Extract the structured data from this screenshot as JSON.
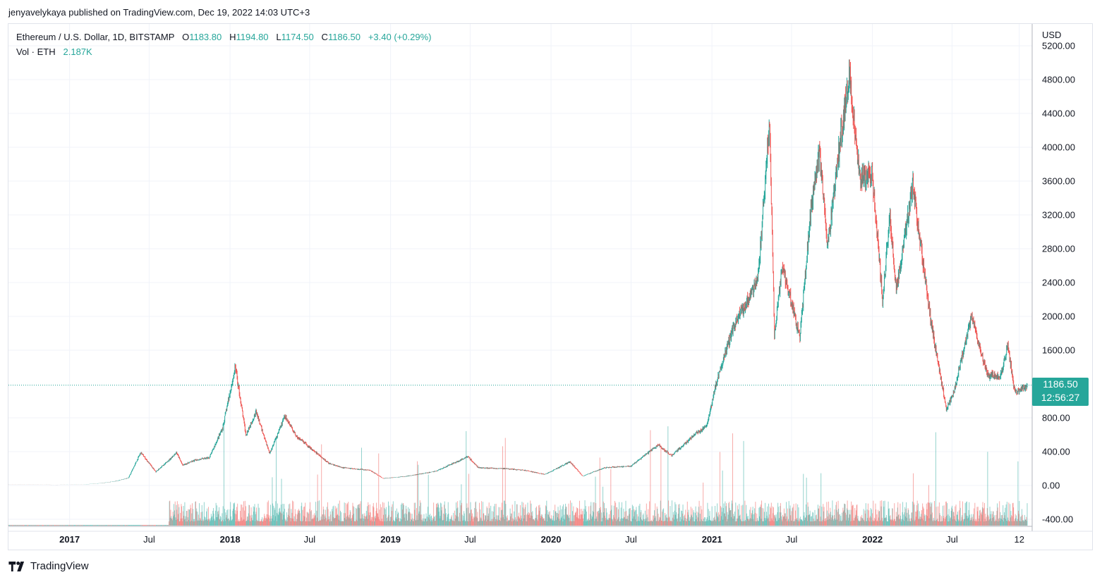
{
  "header": {
    "published": "jenyavelykaya published on TradingView.com, Dec 19, 2022 14:03 UTC+3"
  },
  "legend": {
    "symbol": "Ethereum / U.S. Dollar, 1D, BITSTAMP",
    "o_label": "O",
    "o_value": "1183.80",
    "h_label": "H",
    "h_value": "1194.80",
    "l_label": "L",
    "l_value": "1174.50",
    "c_label": "C",
    "c_value": "1186.50",
    "change": "+3.40 (+0.29%)",
    "vol_label": "Vol · ETH",
    "vol_value": "2.187K"
  },
  "price_axis": {
    "currency": "USD",
    "last_price": "1186.50",
    "countdown": "12:56:27"
  },
  "colors": {
    "up": "#26a69a",
    "down": "#ef5350",
    "grid": "#f0f3fa",
    "axis_text": "#131722"
  },
  "brand": {
    "name": "TradingView",
    "icon": "tradingview-logo-icon"
  },
  "chart_data": {
    "type": "candlestick",
    "interval": "1D",
    "exchange": "BITSTAMP",
    "y_ticks": [
      "5200.00",
      "4800.00",
      "4400.00",
      "4000.00",
      "3600.00",
      "3200.00",
      "2800.00",
      "2400.00",
      "2000.00",
      "1600.00",
      "800.00",
      "400.00",
      "0.00",
      "-400.00"
    ],
    "ylim": [
      -450,
      5300
    ],
    "x_ticks": [
      {
        "label": "2017",
        "date": "2017-01-01",
        "bold": true
      },
      {
        "label": "Jul",
        "date": "2017-07-01",
        "bold": false
      },
      {
        "label": "2018",
        "date": "2018-01-01",
        "bold": true
      },
      {
        "label": "Jul",
        "date": "2018-07-01",
        "bold": false
      },
      {
        "label": "2019",
        "date": "2019-01-01",
        "bold": true
      },
      {
        "label": "Jul",
        "date": "2019-07-01",
        "bold": false
      },
      {
        "label": "2020",
        "date": "2020-01-01",
        "bold": true
      },
      {
        "label": "Jul",
        "date": "2020-07-01",
        "bold": false
      },
      {
        "label": "2021",
        "date": "2021-01-01",
        "bold": true
      },
      {
        "label": "Jul",
        "date": "2021-07-01",
        "bold": false
      },
      {
        "label": "2022",
        "date": "2022-01-01",
        "bold": true
      },
      {
        "label": "Jul",
        "date": "2022-07-01",
        "bold": false
      },
      {
        "label": "12",
        "date": "2022-12-01",
        "bold": false
      }
    ],
    "price_path": [
      [
        "2016-08-15",
        11
      ],
      [
        "2016-12-01",
        8
      ],
      [
        "2017-02-01",
        11
      ],
      [
        "2017-03-15",
        28
      ],
      [
        "2017-04-15",
        50
      ],
      [
        "2017-05-15",
        90
      ],
      [
        "2017-06-12",
        390
      ],
      [
        "2017-07-16",
        160
      ],
      [
        "2017-08-15",
        300
      ],
      [
        "2017-09-01",
        390
      ],
      [
        "2017-09-15",
        240
      ],
      [
        "2017-10-15",
        300
      ],
      [
        "2017-11-15",
        330
      ],
      [
        "2017-12-15",
        680
      ],
      [
        "2018-01-13",
        1400
      ],
      [
        "2018-02-06",
        600
      ],
      [
        "2018-03-01",
        870
      ],
      [
        "2018-04-01",
        380
      ],
      [
        "2018-05-06",
        820
      ],
      [
        "2018-06-01",
        580
      ],
      [
        "2018-07-01",
        450
      ],
      [
        "2018-08-14",
        260
      ],
      [
        "2018-09-15",
        210
      ],
      [
        "2018-11-15",
        180
      ],
      [
        "2018-12-15",
        84
      ],
      [
        "2019-02-01",
        105
      ],
      [
        "2019-03-15",
        140
      ],
      [
        "2019-04-15",
        170
      ],
      [
        "2019-06-26",
        340
      ],
      [
        "2019-07-20",
        210
      ],
      [
        "2019-09-15",
        200
      ],
      [
        "2019-11-01",
        180
      ],
      [
        "2019-12-18",
        130
      ],
      [
        "2020-02-13",
        280
      ],
      [
        "2020-03-13",
        110
      ],
      [
        "2020-05-01",
        210
      ],
      [
        "2020-07-01",
        230
      ],
      [
        "2020-09-01",
        480
      ],
      [
        "2020-10-01",
        350
      ],
      [
        "2020-11-24",
        610
      ],
      [
        "2020-12-20",
        700
      ],
      [
        "2021-01-10",
        1200
      ],
      [
        "2021-02-20",
        1900
      ],
      [
        "2021-04-15",
        2400
      ],
      [
        "2021-05-12",
        4350
      ],
      [
        "2021-05-23",
        1800
      ],
      [
        "2021-06-10",
        2600
      ],
      [
        "2021-07-20",
        1750
      ],
      [
        "2021-08-15",
        3300
      ],
      [
        "2021-09-03",
        3950
      ],
      [
        "2021-09-21",
        2800
      ],
      [
        "2021-10-20",
        4100
      ],
      [
        "2021-11-10",
        4850
      ],
      [
        "2021-12-04",
        3600
      ],
      [
        "2021-12-31",
        3700
      ],
      [
        "2022-01-24",
        2200
      ],
      [
        "2022-02-10",
        3200
      ],
      [
        "2022-02-24",
        2300
      ],
      [
        "2022-04-03",
        3560
      ],
      [
        "2022-05-12",
        2000
      ],
      [
        "2022-06-18",
        900
      ],
      [
        "2022-07-05",
        1100
      ],
      [
        "2022-08-14",
        2000
      ],
      [
        "2022-09-20",
        1300
      ],
      [
        "2022-10-20",
        1300
      ],
      [
        "2022-11-05",
        1650
      ],
      [
        "2022-11-21",
        1100
      ],
      [
        "2022-12-19",
        1186.5
      ]
    ],
    "last_price": 1186.5
  }
}
